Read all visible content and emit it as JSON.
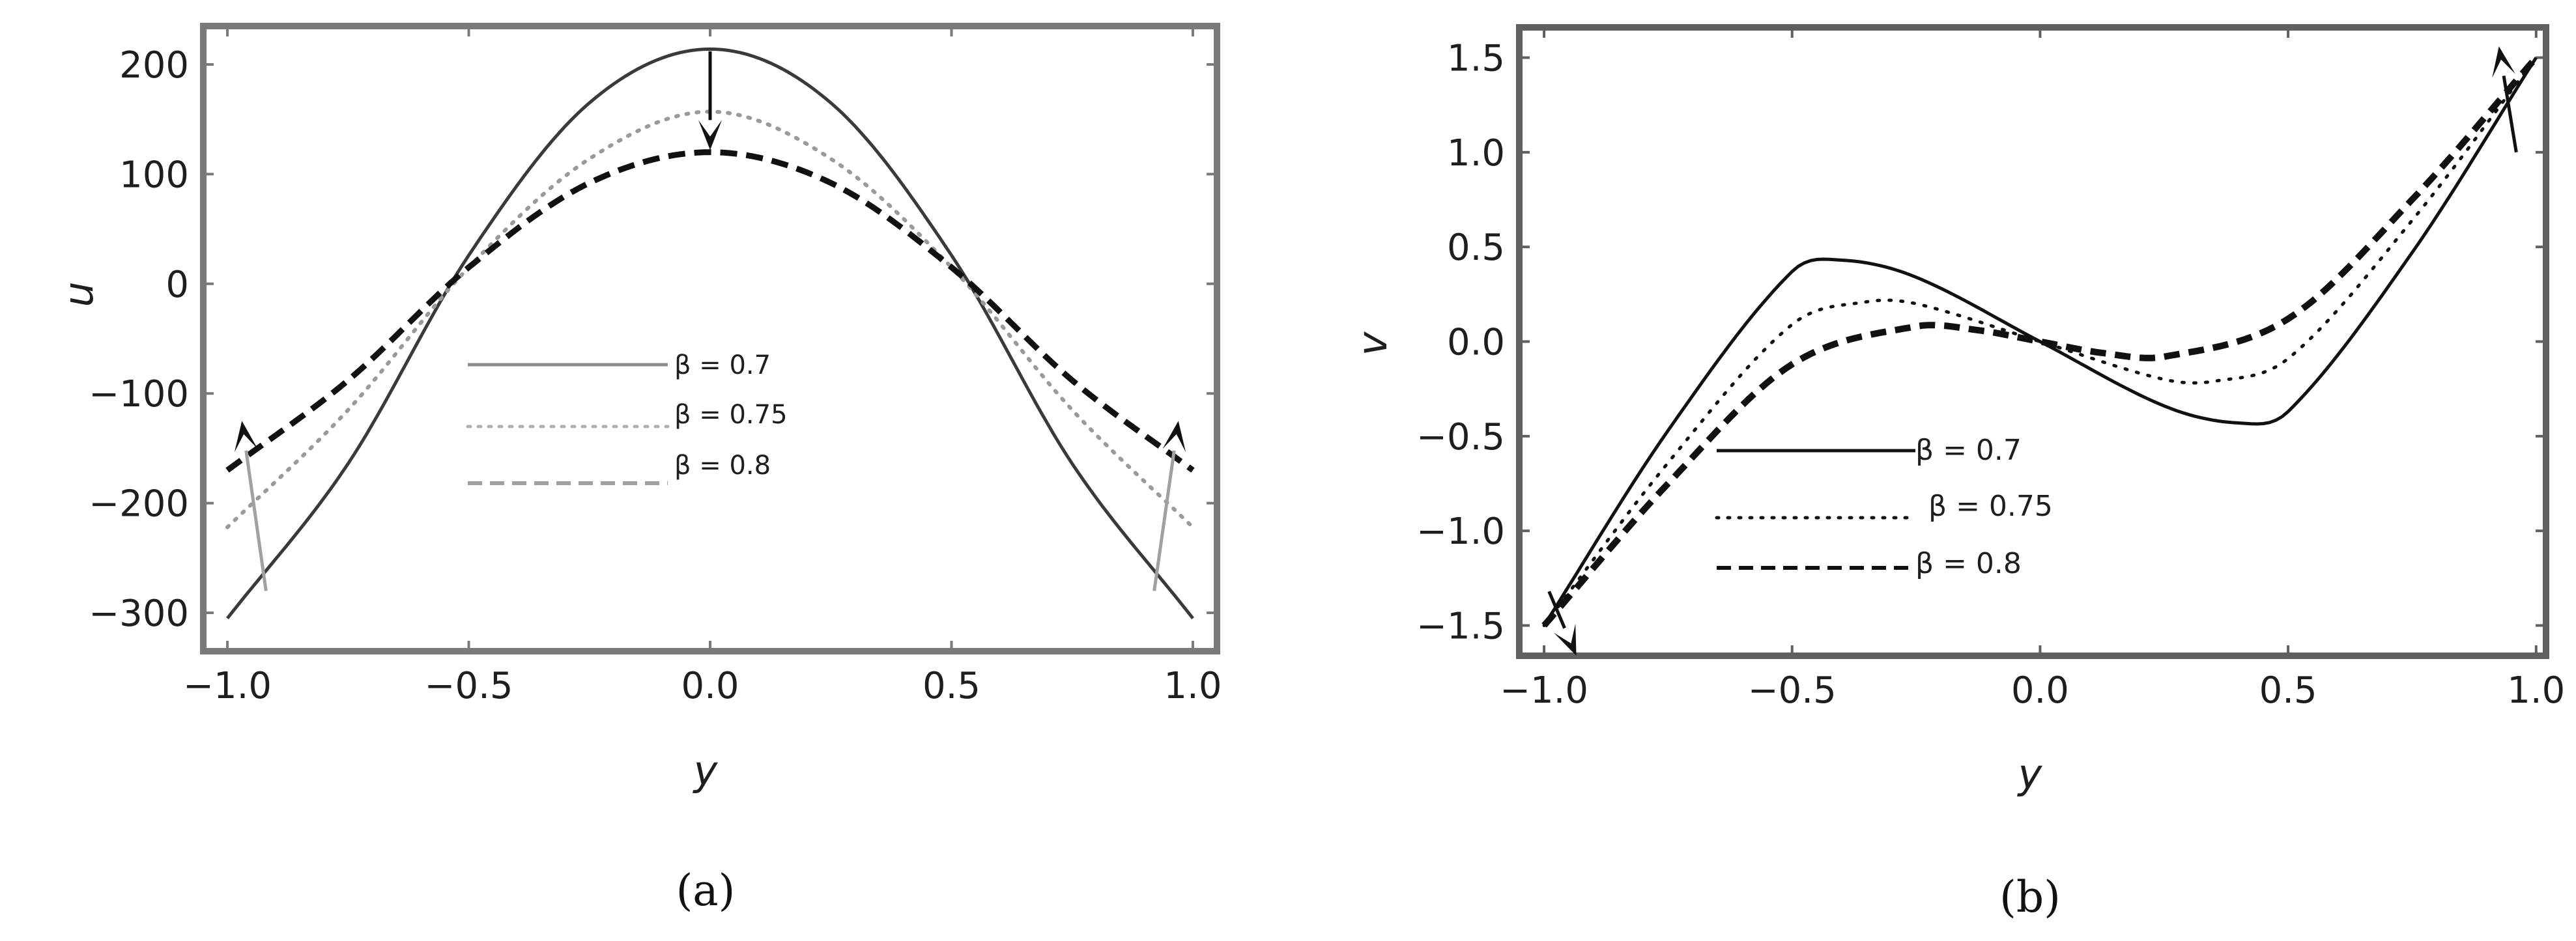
{
  "chart_data": [
    {
      "type": "line",
      "caption": "(a)",
      "xlabel": "y",
      "ylabel": "u",
      "xlim": [
        -1.05,
        1.05
      ],
      "ylim": [
        -335,
        235
      ],
      "xticks": [
        "−1.0",
        "−0.5",
        "0.0",
        "0.5",
        "1.0"
      ],
      "xtick_values": [
        -1.0,
        -0.5,
        0.0,
        0.5,
        1.0
      ],
      "yticks": [
        "−300",
        "−200",
        "−100",
        "0",
        "100",
        "200"
      ],
      "ytick_values": [
        -300,
        -200,
        -100,
        0,
        100,
        200
      ],
      "colors": {
        "solid": "#3a3a3a",
        "dotted": "#9a9a9a",
        "dashed": "#111111",
        "frame": "#7a7a7a",
        "arrow": "#a0a0a0"
      },
      "series": [
        {
          "name": "β = 0.7",
          "style": "solid",
          "x": [
            -1.0,
            -0.75,
            -0.5,
            -0.25,
            0.0,
            0.25,
            0.5,
            0.75,
            1.0
          ],
          "y": [
            -305,
            -164,
            26,
            165,
            214,
            165,
            26,
            -164,
            -305
          ]
        },
        {
          "name": "β = 0.75",
          "style": "dotted",
          "x": [
            -1.0,
            -0.75,
            -0.5,
            -0.25,
            0.0,
            0.25,
            0.5,
            0.75,
            1.0
          ],
          "y": [
            -222,
            -115,
            15,
            114,
            157,
            114,
            15,
            -115,
            -222
          ]
        },
        {
          "name": "β = 0.8",
          "style": "dashed",
          "x": [
            -1.0,
            -0.75,
            -0.5,
            -0.25,
            0.0,
            0.25,
            0.5,
            0.75,
            1.0
          ],
          "y": [
            -170,
            -88,
            15,
            92,
            120,
            92,
            15,
            -88,
            -170
          ]
        }
      ],
      "arrows": [
        {
          "from": [
            0.0,
            212
          ],
          "to": [
            0.0,
            122
          ],
          "color": "#111111"
        },
        {
          "from": [
            -0.92,
            -280
          ],
          "to": [
            -0.97,
            -125
          ],
          "color": "#a0a0a0"
        },
        {
          "from": [
            0.92,
            -280
          ],
          "to": [
            0.97,
            -125
          ],
          "color": "#a0a0a0"
        }
      ]
    },
    {
      "type": "line",
      "caption": "(b)",
      "xlabel": "y",
      "ylabel": "v",
      "xlim": [
        -1.05,
        1.02
      ],
      "ylim": [
        -1.66,
        1.66
      ],
      "xticks": [
        "−1.0",
        "−0.5",
        "0.0",
        "0.5",
        "1.0"
      ],
      "xtick_values": [
        -1.0,
        -0.5,
        0.0,
        0.5,
        1.0
      ],
      "yticks": [
        "−1.5",
        "−1.0",
        "−0.5",
        "0.0",
        "0.5",
        "1.0",
        "1.5"
      ],
      "ytick_values": [
        -1.5,
        -1.0,
        -0.5,
        0.0,
        0.5,
        1.0,
        1.5
      ],
      "colors": {
        "solid": "#111111",
        "dotted": "#111111",
        "dashed": "#111111",
        "frame": "#5f5f5f",
        "arrow": "#111111"
      },
      "series": [
        {
          "name": "β = 0.7",
          "style": "solid",
          "x": [
            -1.0,
            -0.75,
            -0.5,
            -0.4,
            -0.25,
            0.0,
            0.25,
            0.4,
            0.5,
            0.75,
            1.0
          ],
          "y": [
            -1.5,
            -0.47,
            0.37,
            0.43,
            0.34,
            0.0,
            -0.34,
            -0.43,
            -0.37,
            0.47,
            1.5
          ]
        },
        {
          "name": "β = 0.75",
          "style": "dotted",
          "x": [
            -1.0,
            -0.75,
            -0.5,
            -0.35,
            -0.25,
            0.0,
            0.25,
            0.35,
            0.5,
            0.75,
            1.0
          ],
          "y": [
            -1.5,
            -0.64,
            0.09,
            0.21,
            0.2,
            0.0,
            -0.2,
            -0.21,
            -0.09,
            0.64,
            1.5
          ]
        },
        {
          "name": "β = 0.8",
          "style": "dashed",
          "x": [
            -1.0,
            -0.75,
            -0.5,
            -0.25,
            -0.125,
            0.0,
            0.125,
            0.25,
            0.5,
            0.75,
            1.0
          ],
          "y": [
            -1.5,
            -0.75,
            -0.12,
            0.08,
            0.06,
            0.0,
            -0.06,
            -0.08,
            0.12,
            0.75,
            1.5
          ]
        }
      ],
      "arrows": [
        {
          "from": [
            -0.99,
            -1.32
          ],
          "to": [
            -0.935,
            -1.66
          ],
          "color": "#111111"
        },
        {
          "from": [
            0.96,
            1.0
          ],
          "to": [
            0.925,
            1.56
          ],
          "color": "#111111"
        }
      ]
    }
  ]
}
